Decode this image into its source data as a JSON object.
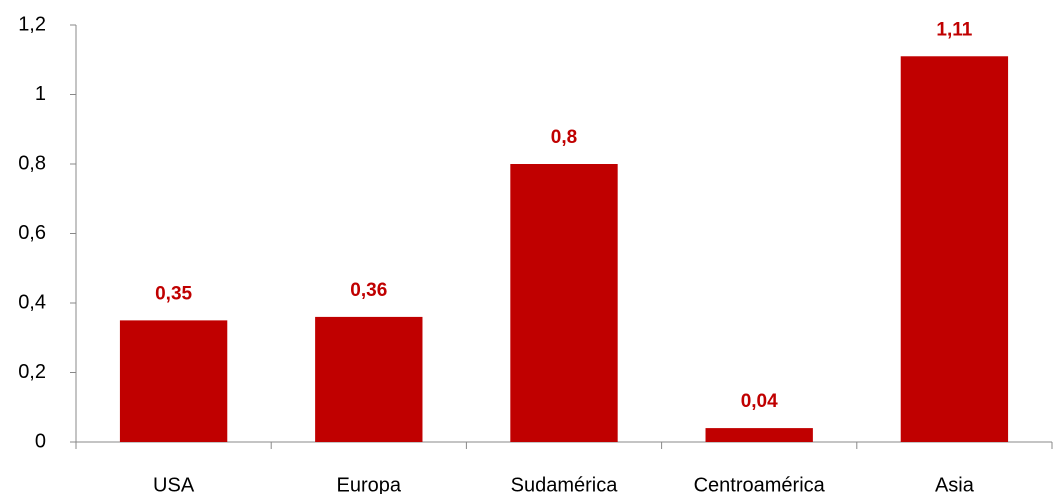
{
  "chart_data": {
    "type": "bar",
    "categories": [
      "USA",
      "Europa",
      "Sudamérica",
      "Centroamérica",
      "Asia"
    ],
    "values": [
      0.35,
      0.36,
      0.8,
      0.04,
      1.11
    ],
    "value_labels": [
      "0,35",
      "0,36",
      "0,8",
      "0,04",
      "1,11"
    ],
    "color": "#c00000",
    "ylim": [
      0,
      1.2
    ],
    "yticks": [
      0,
      {
        "value": 0.2,
        "label": "0,2"
      },
      {
        "value": 0.4,
        "label": "0,4"
      },
      {
        "value": 0.6,
        "label": "0,6"
      },
      {
        "value": 0.8,
        "label": "0,8"
      },
      1,
      {
        "value": 1.2,
        "label": "1,2"
      }
    ],
    "grid": false
  }
}
